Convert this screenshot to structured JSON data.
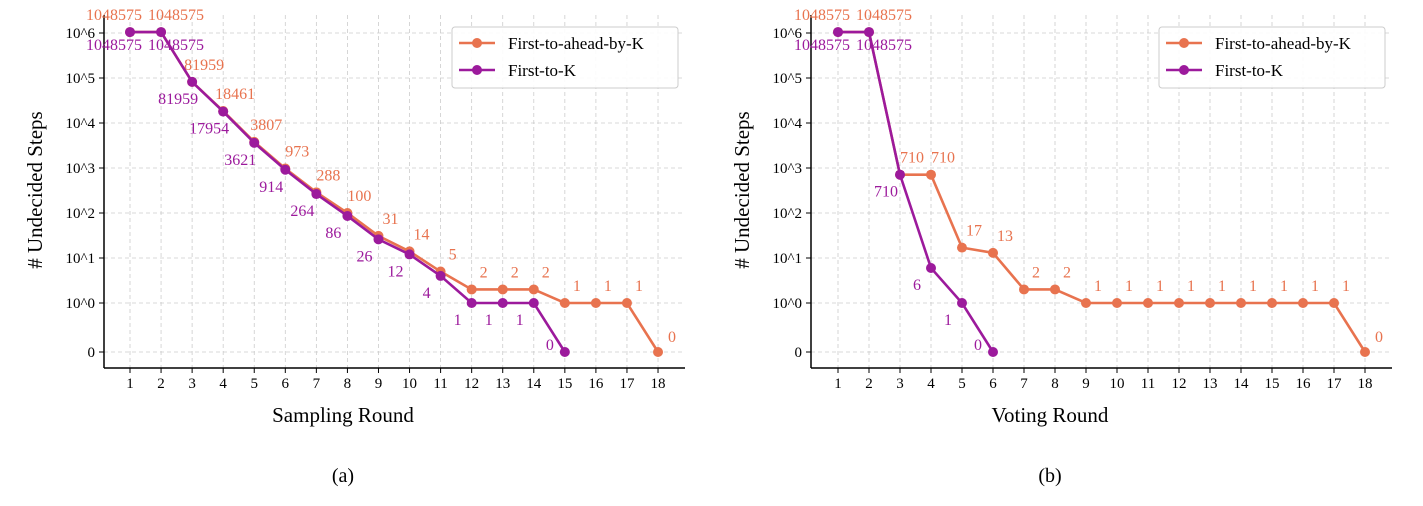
{
  "colors": {
    "orange": "#e8734f",
    "purple": "#9c1a9c",
    "grid": "#cccccc"
  },
  "chart_data": [
    {
      "type": "line",
      "panel_label": "(a)",
      "xlabel": "Sampling Round",
      "ylabel": "# Undecided Steps",
      "y_scale": "symlog",
      "y_ticks": [
        "0",
        "10^0",
        "10^1",
        "10^2",
        "10^3",
        "10^4",
        "10^5",
        "10^6"
      ],
      "x_ticks": [
        1,
        2,
        3,
        4,
        5,
        6,
        7,
        8,
        9,
        10,
        11,
        12,
        13,
        14,
        15,
        16,
        17,
        18
      ],
      "grid": true,
      "legend_position": "top-right",
      "series": [
        {
          "name": "First-to-ahead-by-K",
          "color": "#e8734f",
          "x": [
            1,
            2,
            3,
            4,
            5,
            6,
            7,
            8,
            9,
            10,
            11,
            12,
            13,
            14,
            15,
            16,
            17,
            18
          ],
          "values": [
            1048575,
            1048575,
            81959,
            18461,
            3807,
            973,
            288,
            100,
            31,
            14,
            5,
            2,
            2,
            2,
            1,
            1,
            1,
            0
          ]
        },
        {
          "name": "First-to-K",
          "color": "#9c1a9c",
          "x": [
            1,
            2,
            3,
            4,
            5,
            6,
            7,
            8,
            9,
            10,
            11,
            12,
            13,
            14,
            15
          ],
          "values": [
            1048575,
            1048575,
            81959,
            17954,
            3621,
            914,
            264,
            86,
            26,
            12,
            4,
            1,
            1,
            1,
            0
          ]
        }
      ]
    },
    {
      "type": "line",
      "panel_label": "(b)",
      "xlabel": "Voting Round",
      "ylabel": "# Undecided Steps",
      "y_scale": "symlog",
      "y_ticks": [
        "0",
        "10^0",
        "10^1",
        "10^2",
        "10^3",
        "10^4",
        "10^5",
        "10^6"
      ],
      "x_ticks": [
        1,
        2,
        3,
        4,
        5,
        6,
        7,
        8,
        9,
        10,
        11,
        12,
        13,
        14,
        15,
        16,
        17,
        18
      ],
      "grid": true,
      "legend_position": "top-right",
      "series": [
        {
          "name": "First-to-ahead-by-K",
          "color": "#e8734f",
          "x": [
            1,
            2,
            3,
            4,
            5,
            6,
            7,
            8,
            9,
            10,
            11,
            12,
            13,
            14,
            15,
            16,
            17,
            18
          ],
          "values": [
            1048575,
            1048575,
            710,
            710,
            17,
            13,
            2,
            2,
            1,
            1,
            1,
            1,
            1,
            1,
            1,
            1,
            1,
            0
          ]
        },
        {
          "name": "First-to-K",
          "color": "#9c1a9c",
          "x": [
            1,
            2,
            3,
            4,
            5,
            6
          ],
          "values": [
            1048575,
            1048575,
            710,
            6,
            1,
            0
          ]
        }
      ]
    }
  ]
}
